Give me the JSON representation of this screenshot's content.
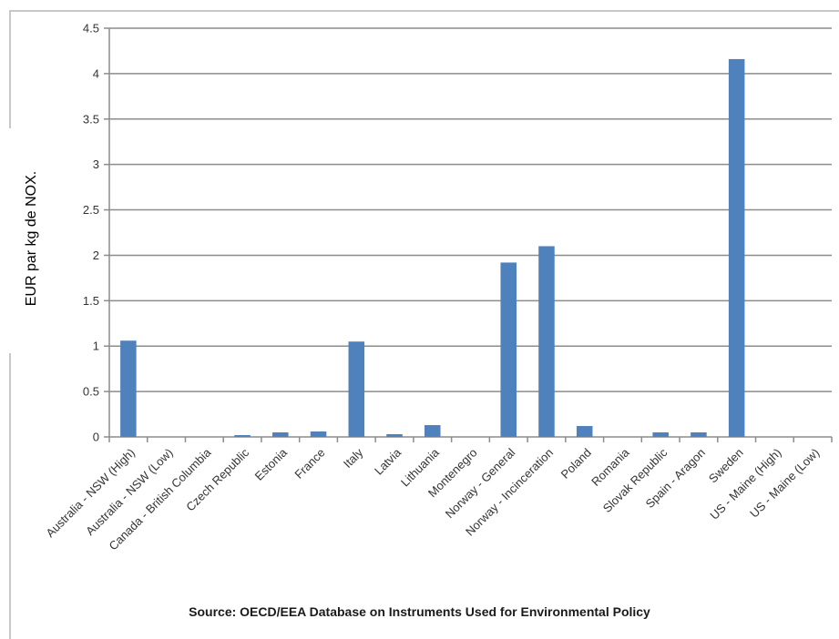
{
  "chart_data": {
    "type": "bar",
    "ylabel": "EUR par kg de NOX.",
    "xlabel": "",
    "ylim": [
      0,
      4.5
    ],
    "yticks": [
      "0",
      "0.5",
      "1",
      "1.5",
      "2",
      "2.5",
      "3",
      "3.5",
      "4",
      "4.5"
    ],
    "grid": true,
    "bar_color": "#4f81bd",
    "categories": [
      "Australia - NSW (High)",
      "Australia - NSW (Low)",
      "Canada - British Columbia",
      "Czech Republic",
      "Estonia",
      "France",
      "Italy",
      "Latvia",
      "Lithuania",
      "Montenegro",
      "Norway - General",
      "Norway - Incinceration",
      "Poland",
      "Romania",
      "Slovak Republic",
      "Spain - Aragon",
      "Sweden",
      "US - Maine (High)",
      "US - Maine (Low)"
    ],
    "values": [
      1.06,
      0,
      0,
      0.02,
      0.05,
      0.06,
      1.05,
      0.03,
      0.13,
      0,
      1.92,
      2.1,
      0.12,
      0,
      0.05,
      0.05,
      4.16,
      0,
      0
    ]
  },
  "source_note": "Source: OECD/EEA Database on Instruments Used for Environmental Policy"
}
